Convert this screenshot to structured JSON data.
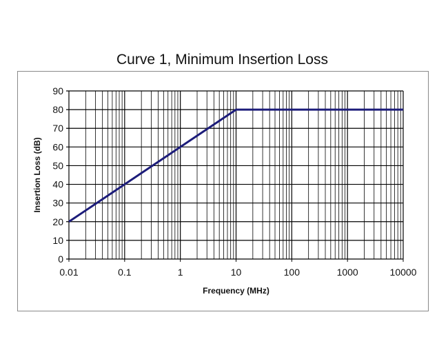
{
  "chart_data": {
    "type": "line",
    "title": "Curve 1, Minimum Insertion Loss",
    "xlabel": "Frequency (MHz)",
    "ylabel": "Insertion Loss (dB)",
    "xscale": "log",
    "xlim": [
      0.01,
      10000
    ],
    "ylim": [
      0,
      90
    ],
    "xticks": [
      "0.01",
      "0.1",
      "1",
      "10",
      "100",
      "1000",
      "10000"
    ],
    "yticks": [
      "0",
      "10",
      "20",
      "30",
      "40",
      "50",
      "60",
      "70",
      "80",
      "90"
    ],
    "grid": true,
    "series": [
      {
        "x": [
          0.01,
          10,
          10000
        ],
        "y": [
          20,
          80,
          80
        ],
        "color": "#1c1c7a"
      }
    ]
  }
}
